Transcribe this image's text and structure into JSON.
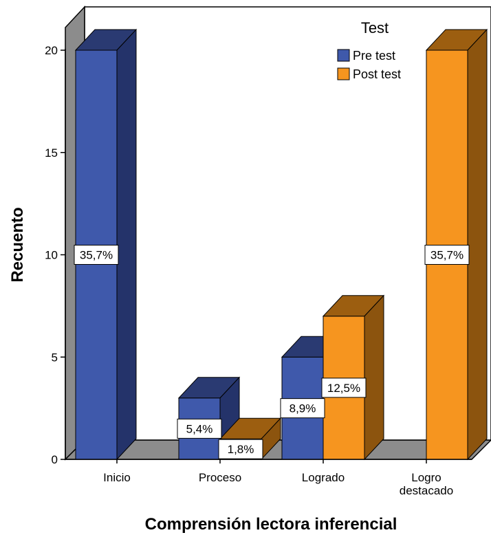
{
  "chart_data": {
    "type": "bar",
    "title": "",
    "xlabel": "Comprensión lectora inferencial",
    "ylabel": "Recuento",
    "ylim": [
      0,
      20
    ],
    "yticks": [
      0,
      5,
      10,
      15,
      20
    ],
    "categories": [
      [
        "Inicio"
      ],
      [
        "Proceso"
      ],
      [
        "Logrado"
      ],
      [
        "Logro",
        "destacado"
      ]
    ],
    "legend_title": "Test",
    "legend_position": "top-right",
    "grid": false,
    "series": [
      {
        "name": "Pre test",
        "color": "#3F59AB",
        "values": [
          20,
          3,
          5,
          0
        ],
        "labels": [
          "35,7%",
          "5,4%",
          "8,9%",
          ""
        ]
      },
      {
        "name": "Post test",
        "color": "#F6951F",
        "values": [
          0,
          1,
          7,
          20
        ],
        "labels": [
          "",
          "1,8%",
          "12,5%",
          "35,7%"
        ]
      }
    ]
  }
}
